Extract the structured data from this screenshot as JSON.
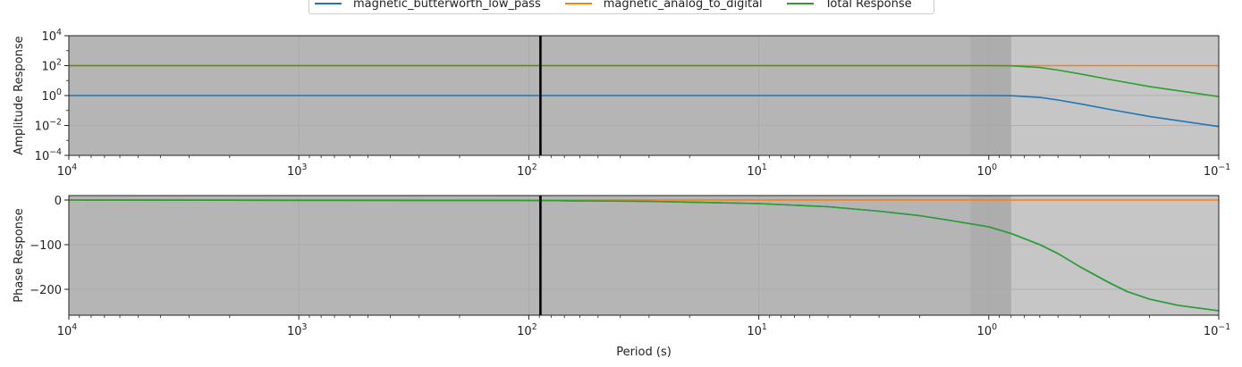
{
  "legend": {
    "items": [
      {
        "name": "magnetic_butterworth_low_pass",
        "color": "#1f77b4"
      },
      {
        "name": "magnetic_analog_to_digital",
        "color": "#ff7f0e"
      },
      {
        "name": "Total Response",
        "color": "#2ca02c"
      }
    ]
  },
  "colors": {
    "background_dark": "#b5b5b5",
    "background_light": "#c6c6c6",
    "band_dark": "#adadad",
    "marker": "#000000"
  },
  "chart_data": [
    {
      "type": "line",
      "panel": "amplitude",
      "xscale": "log",
      "yscale": "log",
      "xlim": [
        10000,
        0.1
      ],
      "ylim": [
        0.0001,
        10000
      ],
      "xlabel": "",
      "ylabel": "Amplitude Response",
      "x_ticks": [
        "10^4",
        "10^3",
        "10^2",
        "10^1",
        "10^0",
        "10^-1"
      ],
      "y_ticks": [
        "10^-4",
        "10^-2",
        "10^0",
        "10^2",
        "10^4"
      ],
      "vertical_marker_x": 89,
      "shaded_band": [
        1.2,
        0.8
      ],
      "grid": true,
      "series": [
        {
          "name": "magnetic_butterworth_low_pass",
          "color": "#1f77b4",
          "points": [
            [
              10000,
              1
            ],
            [
              1,
              1
            ],
            [
              0.8,
              0.97
            ],
            [
              0.6,
              0.75
            ],
            [
              0.5,
              0.5
            ],
            [
              0.4,
              0.28
            ],
            [
              0.3,
              0.12
            ],
            [
              0.2,
              0.04
            ],
            [
              0.1,
              0.0085
            ]
          ]
        },
        {
          "name": "magnetic_analog_to_digital",
          "color": "#ff7f0e",
          "points": [
            [
              10000,
              100
            ],
            [
              0.1,
              100
            ]
          ]
        },
        {
          "name": "Total Response",
          "color": "#2ca02c",
          "points": [
            [
              10000,
              100
            ],
            [
              1,
              100
            ],
            [
              0.8,
              97
            ],
            [
              0.6,
              75
            ],
            [
              0.5,
              50
            ],
            [
              0.4,
              28
            ],
            [
              0.3,
              12
            ],
            [
              0.2,
              4
            ],
            [
              0.1,
              0.85
            ]
          ]
        }
      ]
    },
    {
      "type": "line",
      "panel": "phase",
      "xscale": "log",
      "yscale": "linear",
      "xlim": [
        10000,
        0.1
      ],
      "ylim": [
        -258,
        10
      ],
      "xlabel": "Period (s)",
      "ylabel": "Phase Response",
      "x_ticks": [
        "10^4",
        "10^3",
        "10^2",
        "10^1",
        "10^0",
        "10^-1"
      ],
      "y_ticks": [
        "0",
        "−100",
        "−200"
      ],
      "y_tick_values": [
        0,
        -100,
        -200
      ],
      "vertical_marker_x": 89,
      "shaded_band": [
        1.2,
        0.8
      ],
      "grid": true,
      "series": [
        {
          "name": "magnetic_butterworth_low_pass",
          "color": "#1f77b4",
          "points": [
            [
              10000,
              0
            ],
            [
              1000,
              -0.5
            ],
            [
              100,
              -1
            ],
            [
              30,
              -3
            ],
            [
              10,
              -8
            ],
            [
              5,
              -15
            ],
            [
              3,
              -25
            ],
            [
              2,
              -35
            ],
            [
              1.5,
              -45
            ],
            [
              1,
              -60
            ],
            [
              0.8,
              -75
            ],
            [
              0.6,
              -100
            ],
            [
              0.5,
              -120
            ],
            [
              0.4,
              -150
            ],
            [
              0.3,
              -185
            ],
            [
              0.25,
              -205
            ],
            [
              0.2,
              -222
            ],
            [
              0.15,
              -236
            ],
            [
              0.1,
              -248
            ]
          ]
        },
        {
          "name": "magnetic_analog_to_digital",
          "color": "#ff7f0e",
          "points": [
            [
              10000,
              0
            ],
            [
              0.1,
              0
            ]
          ]
        },
        {
          "name": "Total Response",
          "color": "#2ca02c",
          "points": [
            [
              10000,
              0
            ],
            [
              1000,
              -0.5
            ],
            [
              100,
              -1
            ],
            [
              30,
              -3
            ],
            [
              10,
              -8
            ],
            [
              5,
              -15
            ],
            [
              3,
              -25
            ],
            [
              2,
              -35
            ],
            [
              1.5,
              -45
            ],
            [
              1,
              -60
            ],
            [
              0.8,
              -75
            ],
            [
              0.6,
              -100
            ],
            [
              0.5,
              -120
            ],
            [
              0.4,
              -150
            ],
            [
              0.3,
              -185
            ],
            [
              0.25,
              -205
            ],
            [
              0.2,
              -222
            ],
            [
              0.15,
              -236
            ],
            [
              0.1,
              -248
            ]
          ]
        }
      ]
    }
  ]
}
